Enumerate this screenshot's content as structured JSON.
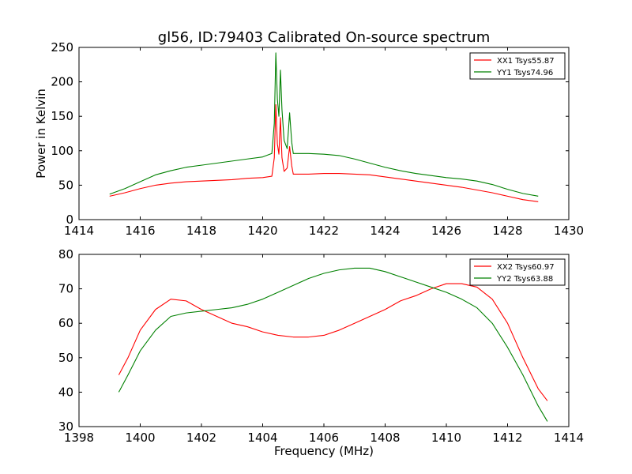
{
  "title": "gl56, ID:79403 Calibrated On-source spectrum",
  "chart_data": [
    {
      "type": "line",
      "ylabel": "Power in Kelvin",
      "xlabel": "",
      "xlim": [
        1414,
        1430
      ],
      "ylim": [
        0,
        250
      ],
      "xticks": [
        1414,
        1416,
        1418,
        1420,
        1422,
        1424,
        1426,
        1428,
        1430
      ],
      "yticks": [
        0,
        50,
        100,
        150,
        200,
        250
      ],
      "legend_position": "top-right",
      "series": [
        {
          "name": "XX1 Tsys55.87",
          "color": "#ff0000",
          "points": [
            [
              1415.0,
              34
            ],
            [
              1415.5,
              39
            ],
            [
              1416.0,
              45
            ],
            [
              1416.5,
              50
            ],
            [
              1417.0,
              53
            ],
            [
              1417.5,
              55
            ],
            [
              1418.0,
              56
            ],
            [
              1418.5,
              57
            ],
            [
              1419.0,
              58
            ],
            [
              1419.5,
              60
            ],
            [
              1420.0,
              61
            ],
            [
              1420.3,
              63
            ],
            [
              1420.38,
              90
            ],
            [
              1420.43,
              167
            ],
            [
              1420.48,
              110
            ],
            [
              1420.53,
              95
            ],
            [
              1420.58,
              148
            ],
            [
              1420.63,
              90
            ],
            [
              1420.7,
              70
            ],
            [
              1420.8,
              75
            ],
            [
              1420.88,
              106
            ],
            [
              1420.95,
              78
            ],
            [
              1421.0,
              66
            ],
            [
              1421.5,
              66
            ],
            [
              1422.0,
              67
            ],
            [
              1422.5,
              67
            ],
            [
              1423.0,
              66
            ],
            [
              1423.5,
              65
            ],
            [
              1424.0,
              62
            ],
            [
              1424.5,
              59
            ],
            [
              1425.0,
              56
            ],
            [
              1425.5,
              53
            ],
            [
              1426.0,
              50
            ],
            [
              1426.5,
              47
            ],
            [
              1427.0,
              43
            ],
            [
              1427.5,
              39
            ],
            [
              1428.0,
              34
            ],
            [
              1428.5,
              29
            ],
            [
              1429.0,
              26
            ]
          ]
        },
        {
          "name": "YY1 Tsys74.96",
          "color": "#008000",
          "points": [
            [
              1415.0,
              37
            ],
            [
              1415.5,
              45
            ],
            [
              1416.0,
              55
            ],
            [
              1416.5,
              65
            ],
            [
              1417.0,
              71
            ],
            [
              1417.5,
              76
            ],
            [
              1418.0,
              79
            ],
            [
              1418.5,
              82
            ],
            [
              1419.0,
              85
            ],
            [
              1419.5,
              88
            ],
            [
              1420.0,
              91
            ],
            [
              1420.3,
              96
            ],
            [
              1420.38,
              140
            ],
            [
              1420.43,
              242
            ],
            [
              1420.48,
              175
            ],
            [
              1420.53,
              150
            ],
            [
              1420.58,
              217
            ],
            [
              1420.63,
              160
            ],
            [
              1420.7,
              115
            ],
            [
              1420.8,
              103
            ],
            [
              1420.88,
              155
            ],
            [
              1420.95,
              112
            ],
            [
              1421.0,
              96
            ],
            [
              1421.5,
              96
            ],
            [
              1422.0,
              95
            ],
            [
              1422.5,
              93
            ],
            [
              1423.0,
              88
            ],
            [
              1423.5,
              82
            ],
            [
              1424.0,
              76
            ],
            [
              1424.5,
              71
            ],
            [
              1425.0,
              67
            ],
            [
              1425.5,
              64
            ],
            [
              1426.0,
              61
            ],
            [
              1426.5,
              59
            ],
            [
              1427.0,
              56
            ],
            [
              1427.5,
              51
            ],
            [
              1428.0,
              44
            ],
            [
              1428.5,
              38
            ],
            [
              1429.0,
              34
            ]
          ]
        }
      ]
    },
    {
      "type": "line",
      "ylabel": "",
      "xlabel": "Frequency (MHz)",
      "xlim": [
        1398,
        1414
      ],
      "ylim": [
        30,
        80
      ],
      "xticks": [
        1398,
        1400,
        1402,
        1404,
        1406,
        1408,
        1410,
        1412,
        1414
      ],
      "yticks": [
        30,
        40,
        50,
        60,
        70,
        80
      ],
      "legend_position": "top-right",
      "series": [
        {
          "name": "XX2 Tsys60.97",
          "color": "#ff0000",
          "points": [
            [
              1399.3,
              45
            ],
            [
              1399.6,
              50
            ],
            [
              1400.0,
              58
            ],
            [
              1400.5,
              64
            ],
            [
              1401.0,
              67
            ],
            [
              1401.5,
              66.5
            ],
            [
              1402.0,
              64
            ],
            [
              1402.5,
              62
            ],
            [
              1403.0,
              60
            ],
            [
              1403.5,
              59
            ],
            [
              1404.0,
              57.5
            ],
            [
              1404.5,
              56.5
            ],
            [
              1405.0,
              56
            ],
            [
              1405.5,
              56
            ],
            [
              1406.0,
              56.5
            ],
            [
              1406.5,
              58
            ],
            [
              1407.0,
              60
            ],
            [
              1407.5,
              62
            ],
            [
              1408.0,
              64
            ],
            [
              1408.5,
              66.5
            ],
            [
              1409.0,
              68
            ],
            [
              1409.5,
              70
            ],
            [
              1410.0,
              71.5
            ],
            [
              1410.5,
              71.5
            ],
            [
              1411.0,
              70.5
            ],
            [
              1411.5,
              67
            ],
            [
              1412.0,
              60
            ],
            [
              1412.5,
              50
            ],
            [
              1413.0,
              41
            ],
            [
              1413.3,
              37.5
            ]
          ]
        },
        {
          "name": "YY2 Tsys63.88",
          "color": "#008000",
          "points": [
            [
              1399.3,
              40
            ],
            [
              1399.6,
              45
            ],
            [
              1400.0,
              52
            ],
            [
              1400.5,
              58
            ],
            [
              1401.0,
              62
            ],
            [
              1401.5,
              63
            ],
            [
              1402.0,
              63.5
            ],
            [
              1402.5,
              64
            ],
            [
              1403.0,
              64.5
            ],
            [
              1403.5,
              65.5
            ],
            [
              1404.0,
              67
            ],
            [
              1404.5,
              69
            ],
            [
              1405.0,
              71
            ],
            [
              1405.5,
              73
            ],
            [
              1406.0,
              74.5
            ],
            [
              1406.5,
              75.5
            ],
            [
              1407.0,
              76
            ],
            [
              1407.5,
              76
            ],
            [
              1408.0,
              75
            ],
            [
              1408.5,
              73.5
            ],
            [
              1409.0,
              72
            ],
            [
              1409.5,
              70.5
            ],
            [
              1410.0,
              69
            ],
            [
              1410.5,
              67
            ],
            [
              1411.0,
              64.5
            ],
            [
              1411.5,
              60
            ],
            [
              1412.0,
              53
            ],
            [
              1412.5,
              45
            ],
            [
              1413.0,
              36
            ],
            [
              1413.3,
              31.5
            ]
          ]
        }
      ]
    }
  ]
}
